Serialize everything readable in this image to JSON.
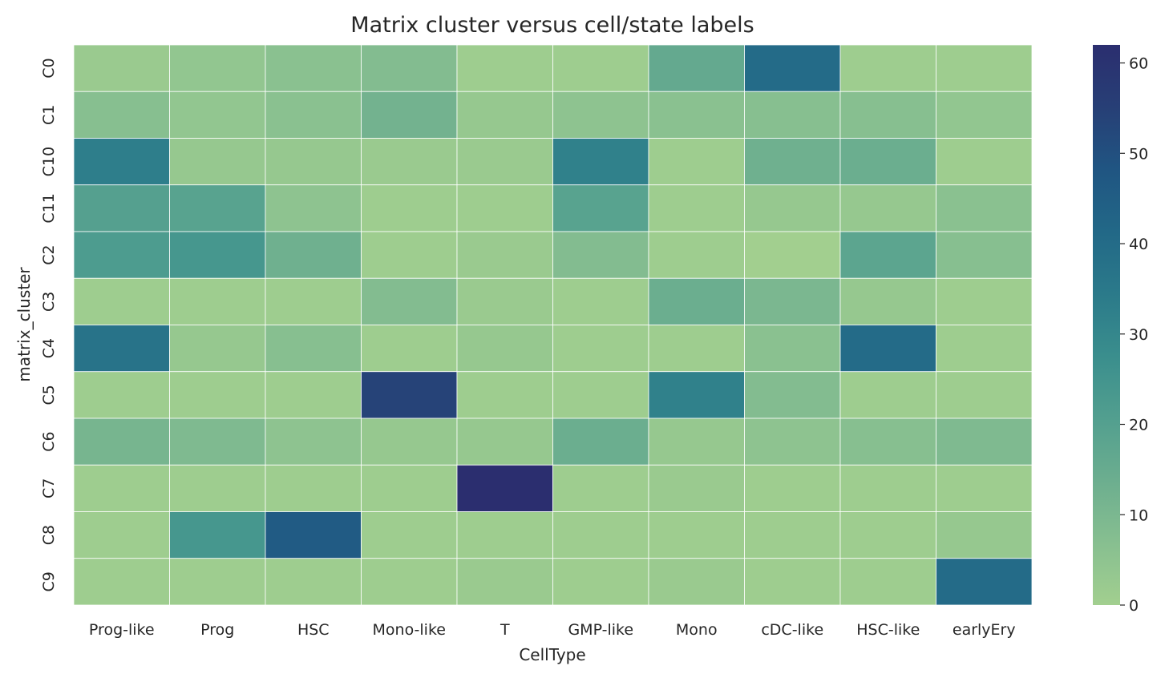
{
  "chart_data": {
    "type": "heatmap",
    "title": "Matrix cluster versus cell/state labels",
    "xlabel": "CellType",
    "ylabel": "matrix_cluster",
    "x_categories": [
      "Prog-like",
      "Prog",
      "HSC",
      "Mono-like",
      "T",
      "GMP-like",
      "Mono",
      "cDC-like",
      "HSC-like",
      "earlyEry"
    ],
    "y_categories": [
      "C0",
      "C1",
      "C10",
      "C11",
      "C2",
      "C3",
      "C4",
      "C5",
      "C6",
      "C7",
      "C8",
      "C9"
    ],
    "values": [
      [
        2,
        4,
        6,
        8,
        1,
        1,
        16,
        40,
        1,
        1
      ],
      [
        7,
        4,
        6,
        12,
        3,
        5,
        6,
        7,
        7,
        4
      ],
      [
        33,
        3,
        3,
        2,
        2,
        32,
        1,
        13,
        14,
        1
      ],
      [
        20,
        19,
        5,
        1,
        1,
        19,
        1,
        3,
        3,
        6
      ],
      [
        22,
        24,
        13,
        1,
        2,
        8,
        1,
        0,
        18,
        7
      ],
      [
        1,
        1,
        1,
        8,
        2,
        1,
        14,
        10,
        3,
        1
      ],
      [
        37,
        3,
        7,
        1,
        3,
        1,
        1,
        6,
        40,
        1
      ],
      [
        1,
        1,
        1,
        54,
        1,
        1,
        32,
        8,
        1,
        1
      ],
      [
        11,
        9,
        5,
        3,
        3,
        14,
        3,
        5,
        7,
        9
      ],
      [
        1,
        1,
        1,
        1,
        62,
        1,
        2,
        1,
        1,
        1
      ],
      [
        1,
        24,
        46,
        1,
        1,
        1,
        1,
        1,
        1,
        3
      ],
      [
        1,
        1,
        1,
        1,
        2,
        1,
        2,
        1,
        1,
        40
      ]
    ],
    "colorbar": {
      "range": [
        0,
        62
      ],
      "ticks": [
        0,
        10,
        20,
        30,
        40,
        50,
        60
      ]
    },
    "colormap": [
      "#a2cf8f",
      "#87bf90",
      "#6cae8f",
      "#529f8f",
      "#3a8e8d",
      "#2b7a8a",
      "#226887",
      "#205582",
      "#273f76",
      "#2b2e6f"
    ],
    "grid": "white cell borders",
    "legend": "colorbar right"
  }
}
